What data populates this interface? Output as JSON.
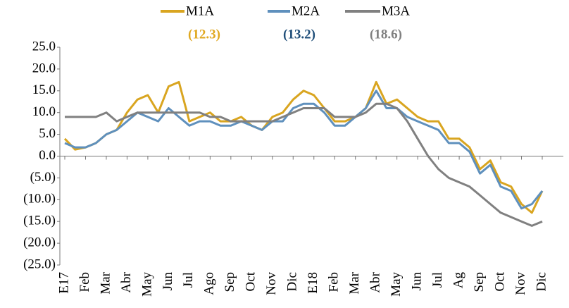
{
  "chart_data": {
    "type": "line",
    "categories": [
      "E17",
      null,
      "Feb",
      null,
      "Mar",
      null,
      "Abr",
      null,
      "May",
      null,
      "Jun",
      null,
      "Jul",
      null,
      "Ago",
      null,
      "Sep",
      null,
      "Oct",
      null,
      "Nov",
      null,
      "Dic",
      null,
      "E18",
      null,
      "Feb",
      null,
      "Mar",
      null,
      "Abr",
      null,
      "May",
      null,
      "Jun",
      null,
      "Jul",
      null,
      "Ag",
      null,
      "Sep",
      null,
      "Oct",
      null,
      "Nov",
      null,
      "Dic"
    ],
    "series": [
      {
        "name": "M1A",
        "label": "(12.3)",
        "color": "#d9a520",
        "label_color": "#e0a820",
        "values": [
          4,
          1.5,
          2,
          3,
          5,
          6,
          10,
          13,
          14,
          10,
          16,
          17,
          8,
          9,
          10,
          8,
          8,
          9,
          7,
          6,
          9,
          10,
          13,
          15,
          14,
          11,
          8,
          8,
          9,
          11,
          17,
          12,
          13,
          11,
          9,
          8,
          8,
          4,
          4,
          2,
          -3,
          -1,
          -6,
          -7,
          -11,
          -13,
          -8
        ]
      },
      {
        "name": "M2A",
        "label": "(13.2)",
        "color": "#5f90bd",
        "label_color": "#1f4e79",
        "values": [
          3,
          2,
          2,
          3,
          5,
          6,
          8,
          10,
          9,
          8,
          11,
          9,
          7,
          8,
          8,
          7,
          7,
          8,
          7,
          6,
          8,
          8,
          11,
          12,
          12,
          10,
          7,
          7,
          9,
          11,
          15,
          11,
          11,
          9,
          8,
          7,
          6,
          3,
          3,
          1,
          -4,
          -2,
          -7,
          -8,
          -12,
          -11,
          -8
        ]
      },
      {
        "name": "M3A",
        "label": "(18.6)",
        "color": "#808080",
        "label_color": "#808080",
        "values": [
          9,
          9,
          9,
          9,
          10,
          8,
          9,
          10,
          10,
          10,
          10,
          10,
          10,
          10,
          9,
          9,
          8,
          8,
          8,
          8,
          8,
          9,
          10,
          11,
          11,
          11,
          9,
          9,
          9,
          10,
          12,
          12,
          11,
          8,
          4,
          0,
          -3,
          -5,
          -6,
          -7,
          -9,
          -11,
          -13,
          -14,
          -15,
          -16,
          -15
        ]
      }
    ],
    "ylim": [
      -25,
      25
    ],
    "yticks": [
      {
        "value": 25,
        "label": "25.0"
      },
      {
        "value": 20,
        "label": "20.0"
      },
      {
        "value": 15,
        "label": "15.0"
      },
      {
        "value": 10,
        "label": "10.0"
      },
      {
        "value": 5,
        "label": "5.0"
      },
      {
        "value": 0,
        "label": "0.0"
      },
      {
        "value": -5,
        "label": "(5.0)"
      },
      {
        "value": -10,
        "label": "(10.0)"
      },
      {
        "value": -15,
        "label": "(15.0)"
      },
      {
        "value": -20,
        "label": "(20.0)"
      },
      {
        "value": -25,
        "label": "(25.0)"
      }
    ],
    "grid": false
  }
}
